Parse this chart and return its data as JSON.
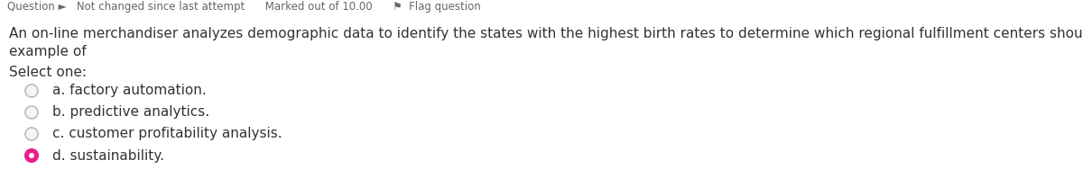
{
  "background_color": "#ffffff",
  "header_bg_color": "#e0e0e0",
  "header_text": "Question ►   Not changed since last attempt      Marked out of 10.00      ⚑  Flag question",
  "header_text_color": "#666666",
  "header_font_size": 8.5,
  "question_text_line1": "An on-line merchandiser analyzes demographic data to identify the states with the highest birth rates to determine which regional fulfillment centers should store the most diapers and baby formula. This is an",
  "question_text_line2": "example of",
  "question_font_size": 11,
  "question_text_color": "#333333",
  "select_one_text": "Select one:",
  "select_one_font_size": 11,
  "options": [
    {
      "label": "a. factory automation.",
      "selected": false
    },
    {
      "label": "b. predictive analytics.",
      "selected": false
    },
    {
      "label": "c. customer profitability analysis.",
      "selected": false
    },
    {
      "label": "d. sustainability.",
      "selected": true
    }
  ],
  "option_font_size": 11,
  "option_text_color": "#333333",
  "circle_empty_facecolor": "#f5f5f5",
  "circle_empty_edgecolor": "#bbbbbb",
  "circle_selected_facecolor": "#e91e8c",
  "circle_selected_edgecolor": "#e91e8c",
  "circle_selected_inner_color": "#ffffff"
}
